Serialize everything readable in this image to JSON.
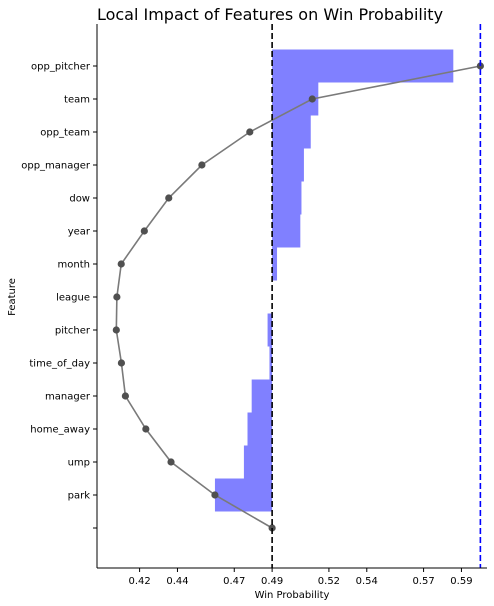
{
  "chart_data": {
    "type": "bar",
    "title": "Local Impact of Features on Win Probability",
    "xlabel": "Win Probability",
    "ylabel": "Feature",
    "xlim": [
      0.3975,
      0.6035
    ],
    "xticks": [
      0.42,
      0.44,
      0.47,
      0.49,
      0.52,
      0.54,
      0.57,
      0.59
    ],
    "xtick_labels": [
      "0.42",
      "0.44",
      "0.47",
      "0.49",
      "0.52",
      "0.54",
      "0.57",
      "0.59"
    ],
    "baseline": 0.49,
    "prediction": 0.6,
    "categories": [
      "opp_pitcher",
      "team",
      "opp_team",
      "opp_manager",
      "dow",
      "year",
      "month",
      "league",
      "pitcher",
      "time_of_day",
      "manager",
      "home_away",
      "ump",
      "park",
      ""
    ],
    "bars": [
      {
        "feature": "opp_pitcher",
        "start": 0.49,
        "end": 0.5857
      },
      {
        "feature": "team",
        "start": 0.49,
        "end": 0.5144
      },
      {
        "feature": "opp_team",
        "start": 0.49,
        "end": 0.5104
      },
      {
        "feature": "opp_manager",
        "start": 0.49,
        "end": 0.5068
      },
      {
        "feature": "dow",
        "start": 0.49,
        "end": 0.5055
      },
      {
        "feature": "year",
        "start": 0.49,
        "end": 0.5049
      },
      {
        "feature": "month",
        "start": 0.49,
        "end": 0.4926
      },
      {
        "feature": "league",
        "start": 0.49,
        "end": 0.49
      },
      {
        "feature": "pitcher",
        "start": 0.4876,
        "end": 0.49
      },
      {
        "feature": "time_of_day",
        "start": 0.4886,
        "end": 0.49
      },
      {
        "feature": "manager",
        "start": 0.4792,
        "end": 0.49
      },
      {
        "feature": "home_away",
        "start": 0.477,
        "end": 0.49
      },
      {
        "feature": "ump",
        "start": 0.4751,
        "end": 0.49
      },
      {
        "feature": "park",
        "start": 0.4598,
        "end": 0.49
      }
    ],
    "cumulative_line": {
      "y_categories": [
        "opp_pitcher",
        "team",
        "opp_team",
        "opp_manager",
        "dow",
        "year",
        "month",
        "league",
        "pitcher",
        "time_of_day",
        "manager",
        "home_away",
        "ump",
        "park",
        ""
      ],
      "values": [
        0.6,
        0.5112,
        0.4782,
        0.4529,
        0.4354,
        0.4225,
        0.4103,
        0.408,
        0.4077,
        0.4104,
        0.4125,
        0.4233,
        0.4366,
        0.4598,
        0.49
      ]
    },
    "colors": {
      "positive": "#8080ff",
      "negative": "#ff8080",
      "line": "#7a7a7a",
      "marker": "#505050",
      "baseline_line": "#000000",
      "prediction_line": "#0000ff"
    },
    "grid": false
  }
}
